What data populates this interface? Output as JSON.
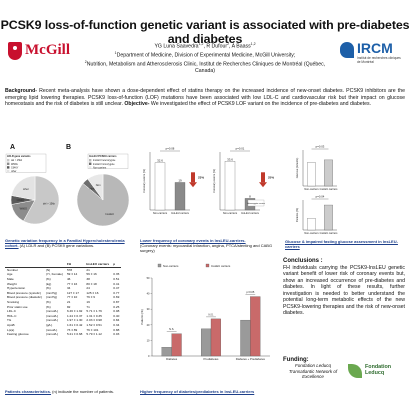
{
  "title": "PCSK9 loss-of-function genetic variant is associated with pre-diabetes and diabetes",
  "authors": {
    "names": "YG Luna Saavedra",
    "names_rest": ", R Dufour",
    "names_rest2": ", A Baass",
    "affil1": "Department of Medicine, Division of Experimental Medicine, McGill University;",
    "affil2": "Nutrition, Metabolism and Atherosclerosis Clinic, Institut de Recherches Cliniques de Montréal (Québec, Canada)"
  },
  "logos": {
    "mcgill": "McGill",
    "ircm": "IRCM",
    "ircm_sub": "Institut de recherches cliniques de Montréal",
    "leducq": [
      "Fondation",
      "Leducq"
    ]
  },
  "background": {
    "label1": "Background-",
    "text1": " Recent meta-analysis have shown a dose-dependent effect of statins therapy on the increased incidence of new-onset diabetes. PCSK9 inhibitors are the emerging lipid lowering therapies. PCSK9 loss-of-function (LOF) mutations have been associated with low LDL-C and cardiovascular risk but their impact on glucose homeostasis and the risk of diabetes is still unclear. ",
    "label2": "Objective-",
    "text2": " We investigated the effect of PCSK9 LOF variant on the incidence of pre-diabetes and diabetes."
  },
  "panels": {
    "a_label": "A",
    "b_label": "B",
    "genetic_caption_title": "Genetic variation frequency in a Familial Hypercholesterolemia cohort.",
    "genetic_caption_text": " (A) LDLR and (B) PCSK9 gene variations.",
    "patients_caption_title": "Patients characteristics.",
    "patients_caption_text": " (n) indicate the number of patients.",
    "coronary_caption_title": "Lower frequency of coronary events in InsLEU-carriers.",
    "coronary_caption_text": "(Coronary events: myocardial infarction, angina, PTCA/stenting and CABG surgery)",
    "prediab_caption_title": "Higher frequency of diabetes/prediabetes in InsLEU-carriers",
    "glucose_caption_title": "Glucose & impaired fasting glucose assessment in InsLEU-carriers"
  },
  "table": {
    "headers": [
      "Number",
      "FH",
      "InsLEU carriers",
      "p"
    ],
    "rows": [
      [
        "Number",
        "(N)",
        "578",
        "21"
      ],
      [
        "Age",
        "(Yr, Female)",
        "59 ± 14",
        "56 ± 16",
        "0.35"
      ],
      [
        "Male",
        "(%)",
        "46",
        "38",
        "0.51"
      ],
      [
        "Weight",
        "(kg)",
        "77 ± 16",
        "80 ± 18",
        "0.41"
      ],
      [
        "Hypertension",
        "(%)",
        "34",
        "24",
        "0.47"
      ],
      [
        "Blood pressure (systolic)",
        "(mmHg)",
        "127 ± 17",
        "125 ± 16",
        "0.77"
      ],
      [
        "Blood pressure (diastolic)",
        "(mmHg)",
        "77 ± 10",
        "76 ± 9",
        "0.69"
      ],
      [
        "Smoking",
        "(%)",
        "21",
        "19",
        "0.87"
      ],
      [
        "Prior statin use",
        "(%)",
        "82",
        "71",
        "0.25"
      ],
      [
        "LDL-C",
        "(mmol/L)",
        "6.46 ± 1.92",
        "5.71 ± 1.76",
        "0.08"
      ],
      [
        "HDL-C",
        "(mmol/L)",
        "1.24 ± 0.37",
        "1.31 ± 0.35",
        "0.40"
      ],
      [
        "TG",
        "(mmol/L)",
        "1.97 ± 1.30",
        "2.03 ± 0.98",
        "0.84"
      ],
      [
        "ApoB",
        "(g/L)",
        "1.61 ± 0.42",
        "1.52 ± 0.51",
        "0.34"
      ],
      [
        "Lp(a)",
        "(nmol/L)",
        "73 ± 89",
        "76 ± 101",
        "0.88"
      ],
      [
        "Fasting glucose",
        "(mmol/L)",
        "5.21 ± 0.68",
        "5.79 ± 1.12",
        "0.03"
      ]
    ]
  },
  "chart_data": [
    {
      "type": "pie",
      "panel": "A",
      "legend_title": "LDLR gene variants",
      "labels": [
        "del > 15kb",
        "W66G",
        "C646Y",
        "other"
      ],
      "values": [
        58,
        14,
        6,
        22
      ],
      "slice_labels": [
        "del > 15kb",
        "W66G",
        "C646Y",
        "other"
      ]
    },
    {
      "type": "pie",
      "panel": "B",
      "legend_title": "InsLEU PCSK9 carriers",
      "labels": [
        "InsLEU heterozygote",
        "InsLEU homozygote",
        "Non-carriers"
      ],
      "values": [
        86,
        4,
        10
      ],
      "slice_labels": [
        "InsLEU",
        "Hom",
        "Non"
      ]
    },
    {
      "type": "bar",
      "title": "Coronary events (all)",
      "ylabel": "Coronary events (%)",
      "categories": [
        "Non-carriers",
        "InsLEU carriers"
      ],
      "values": [
        32.6,
        19.0
      ],
      "value_labels": [
        "32.6",
        "19"
      ],
      "pvalue": "p=0.08",
      "ylim": [
        0,
        40
      ],
      "annotation": "23%"
    },
    {
      "type": "bar",
      "title": "Coronary events (female)",
      "ylabel": "Coronary events (%)",
      "categories": [
        "Non-carriers",
        "InsLEU carriers"
      ],
      "values": [
        33.6,
        8.0
      ],
      "value_labels": [
        "33.6",
        "8"
      ],
      "pvalue": "p=0.01",
      "ylim": [
        0,
        40
      ],
      "annotation": "25%",
      "note": "Heterozygote carriers"
    },
    {
      "type": "bar",
      "title": "Pre-diabetes & diabetes",
      "ylabel": "Patients (%)",
      "categories": [
        "Diabetes",
        "Prediabetes",
        "Diabetes + Prediabetes"
      ],
      "series": [
        {
          "name": "Non-carriers",
          "values": [
            5.6,
            17.4,
            23.0
          ],
          "color": "#9a9a9a"
        },
        {
          "name": "InsLEU carriers",
          "values": [
            14.3,
            23.8,
            38.1
          ],
          "color": "#c96a6a"
        }
      ],
      "pvalues": [
        "N.S.",
        "N.S.",
        "p<0.05"
      ],
      "ylim": [
        0,
        50
      ]
    },
    {
      "type": "bar",
      "title": "Fasting glucose",
      "ylabel": "Glucose (mmol/L)",
      "categories": [
        "Non-carriers",
        "InsLEU carriers"
      ],
      "values": [
        5.2,
        5.8
      ],
      "pvalue": "p=0.03",
      "ylim": [
        0,
        8
      ]
    },
    {
      "type": "bar",
      "title": "Impaired fasting glucose",
      "ylabel": "Patients (%)",
      "categories": [
        "Non-carriers",
        "InsLEU carriers"
      ],
      "values": [
        15.4,
        33.3
      ],
      "pvalue": "p=0.04",
      "ylim": [
        0,
        40
      ]
    }
  ],
  "conclusions": {
    "heading": "Conclusions :",
    "text": "FH individuals carrying the PCSK9-InsLEU genetic variant benefit of lower risk of coronary events but, show an increased occurrence of pre-diabetes and diabetes. In light of these results, further investigation is needed to better understand the potential long-term metabolic effects of the new PCSK9-lowering therapies and the risk of new-onset diabetes."
  },
  "funding": {
    "heading": "Funding:",
    "text": "Fondation Leducq Transatlantic Network of Excellence"
  }
}
